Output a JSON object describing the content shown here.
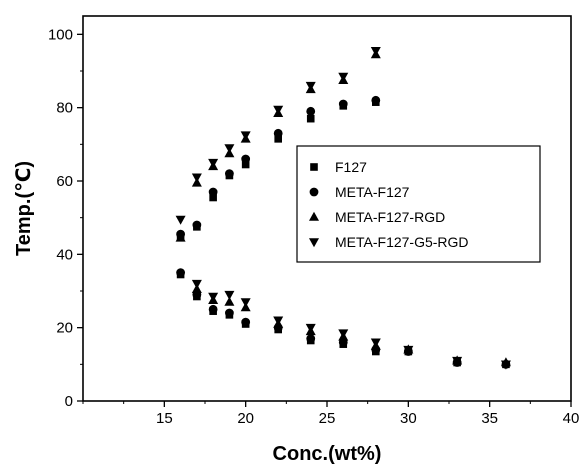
{
  "chart_data": {
    "type": "scatter",
    "xlabel": "Conc.(wt%)",
    "ylabel": "Temp.(℃)",
    "xlim": [
      10,
      40
    ],
    "ylim": [
      0,
      105
    ],
    "xticks": [
      15,
      20,
      25,
      30,
      35,
      40
    ],
    "yticks": [
      0,
      20,
      40,
      60,
      80,
      100
    ],
    "xtick_labels": [
      "15",
      "20",
      "25",
      "30",
      "35",
      "40"
    ],
    "ytick_labels": [
      "0",
      "20",
      "40",
      "60",
      "80",
      "100"
    ],
    "grid": false,
    "legend_position": "right-center",
    "series": [
      {
        "name": "F127",
        "marker": "square",
        "color": "#000000",
        "points": [
          [
            16,
            34.5
          ],
          [
            17,
            28.5
          ],
          [
            18,
            24.5
          ],
          [
            19,
            23.5
          ],
          [
            20,
            21
          ],
          [
            22,
            19.5
          ],
          [
            24,
            16.5
          ],
          [
            26,
            15.5
          ],
          [
            28,
            13.5
          ],
          [
            30,
            13.5
          ],
          [
            33,
            10.5
          ],
          [
            36,
            10
          ],
          [
            16,
            45
          ],
          [
            17,
            47.5
          ],
          [
            18,
            55.5
          ],
          [
            19,
            61.5
          ],
          [
            20,
            64.5
          ],
          [
            22,
            71.5
          ],
          [
            24,
            77
          ],
          [
            26,
            80.5
          ],
          [
            28,
            81.5
          ]
        ]
      },
      {
        "name": "META-F127",
        "marker": "circle",
        "color": "#000000",
        "points": [
          [
            16,
            35
          ],
          [
            17,
            29
          ],
          [
            18,
            25
          ],
          [
            19,
            24
          ],
          [
            20,
            21.5
          ],
          [
            22,
            20
          ],
          [
            24,
            17
          ],
          [
            26,
            16
          ],
          [
            28,
            14
          ],
          [
            30,
            13.5
          ],
          [
            33,
            10.5
          ],
          [
            36,
            10
          ],
          [
            16,
            45.5
          ],
          [
            17,
            48
          ],
          [
            18,
            57
          ],
          [
            19,
            62
          ],
          [
            20,
            66
          ],
          [
            22,
            73
          ],
          [
            24,
            79
          ],
          [
            26,
            81
          ],
          [
            28,
            82
          ]
        ]
      },
      {
        "name": "META-F127-RGD",
        "marker": "triangle-up",
        "color": "#000000",
        "points": [
          [
            16,
            44.5
          ],
          [
            17,
            59.5
          ],
          [
            18,
            64
          ],
          [
            19,
            67.5
          ],
          [
            20,
            71.5
          ],
          [
            22,
            78.5
          ],
          [
            24,
            85
          ],
          [
            26,
            87.5
          ],
          [
            28,
            94.5
          ],
          [
            17,
            30.5
          ],
          [
            18,
            27.5
          ],
          [
            19,
            27
          ],
          [
            20,
            25.5
          ],
          [
            22,
            21
          ],
          [
            24,
            19
          ],
          [
            26,
            17.5
          ],
          [
            28,
            15
          ],
          [
            30,
            14
          ],
          [
            33,
            11
          ],
          [
            36,
            10.5
          ]
        ]
      },
      {
        "name": "META-F127-G5-RGD",
        "marker": "triangle-down",
        "color": "#000000",
        "points": [
          [
            16,
            49.5
          ],
          [
            17,
            61
          ],
          [
            18,
            65
          ],
          [
            19,
            69
          ],
          [
            20,
            72.5
          ],
          [
            22,
            79.5
          ],
          [
            24,
            86
          ],
          [
            26,
            88.5
          ],
          [
            28,
            95.5
          ],
          [
            17,
            32
          ],
          [
            18,
            28.5
          ],
          [
            19,
            29
          ],
          [
            20,
            27
          ],
          [
            22,
            22
          ],
          [
            24,
            20
          ],
          [
            26,
            18.5
          ],
          [
            28,
            16
          ],
          [
            30,
            14
          ],
          [
            33,
            11
          ],
          [
            36,
            10
          ]
        ]
      }
    ]
  }
}
